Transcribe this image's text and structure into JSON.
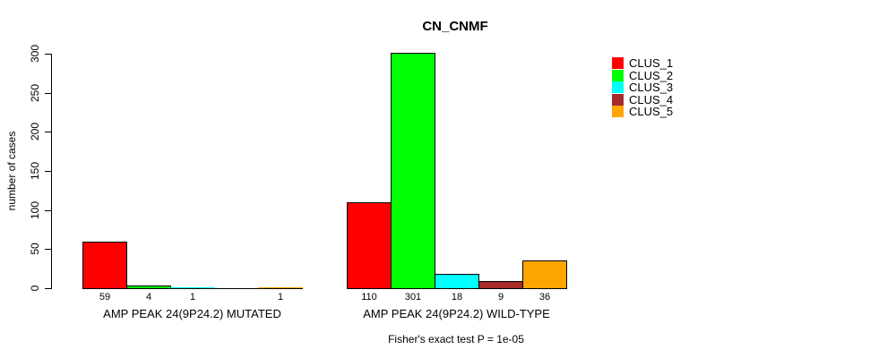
{
  "chart_data": {
    "type": "bar",
    "title": "CN_CNMF",
    "ylabel": "number of cases",
    "ylim": [
      0,
      300
    ],
    "yticks": [
      0,
      50,
      100,
      150,
      200,
      250,
      300
    ],
    "grid": false,
    "legend_position": "right",
    "bar_border_color": "#000000",
    "legend": [
      {
        "name": "CLUS_1",
        "color": "#FF0000"
      },
      {
        "name": "CLUS_2",
        "color": "#00FF00"
      },
      {
        "name": "CLUS_3",
        "color": "#00FFFF"
      },
      {
        "name": "CLUS_4",
        "color": "#A52A2A"
      },
      {
        "name": "CLUS_5",
        "color": "#FFA500"
      }
    ],
    "groups": [
      {
        "label": "AMP PEAK 24(9P24.2) MUTATED",
        "values": [
          59,
          4,
          1,
          0,
          1
        ],
        "value_labels": [
          "59",
          "4",
          "1",
          "",
          "1"
        ]
      },
      {
        "label": "AMP PEAK 24(9P24.2) WILD-TYPE",
        "values": [
          110,
          301,
          18,
          9,
          36
        ],
        "value_labels": [
          "110",
          "301",
          "18",
          "9",
          "36"
        ]
      }
    ],
    "annotation": "Fisher's exact test P = 1e-05"
  }
}
